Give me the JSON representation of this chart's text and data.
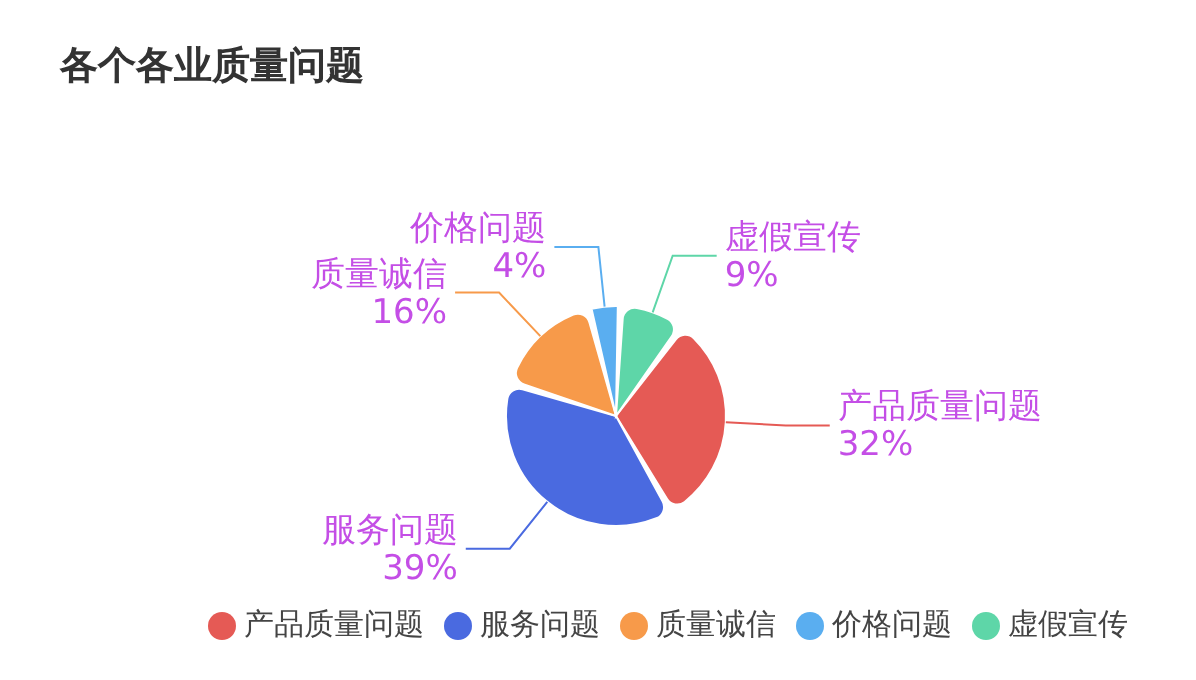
{
  "chart_data": {
    "type": "pie",
    "title": "各个各业质量问题",
    "categories": [
      "产品质量问题",
      "服务问题",
      "质量诚信",
      "价格问题",
      "虚假宣传"
    ],
    "values": [
      32,
      39,
      16,
      4,
      9
    ],
    "value_labels": [
      "32%",
      "39%",
      "16%",
      "4%",
      "9%"
    ],
    "colors": [
      "#e55a55",
      "#4a6ae0",
      "#f79a4a",
      "#5aaef0",
      "#5ed6a8"
    ],
    "legend": "bottom"
  }
}
